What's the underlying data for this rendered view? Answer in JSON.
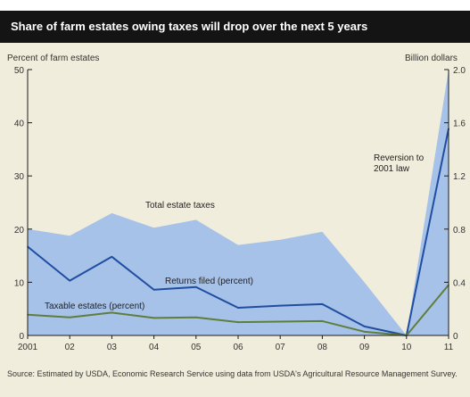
{
  "header": {
    "title": "Share of farm estates owing taxes will drop over the next 5 years"
  },
  "footer": {
    "source": "Source:  Estimated by USDA, Economic Research Service using data from USDA's Agricultural Resource Management Survey."
  },
  "colors": {
    "background": "#f1eddc",
    "area": "#a7c2e8",
    "returns_line": "#1f4ea1",
    "taxable_line": "#5f7d3c",
    "axis": "#1a1a1a"
  },
  "chart_data": {
    "type": "line",
    "title": "",
    "x": [
      "2001",
      "02",
      "03",
      "04",
      "05",
      "06",
      "07",
      "08",
      "09",
      "10",
      "11"
    ],
    "left_axis": {
      "label": "Percent of farm estates",
      "ylim": [
        0,
        50
      ],
      "ticks": [
        0,
        10,
        20,
        30,
        40,
        50
      ]
    },
    "right_axis": {
      "label": "Billion dollars",
      "ylim": [
        0,
        2.0
      ],
      "ticks": [
        "0",
        "0.4",
        "0.8",
        "1.2",
        "1.6",
        "2.0"
      ]
    },
    "series": [
      {
        "name": "Total estate taxes",
        "type": "area",
        "axis": "right",
        "values": [
          0.8,
          0.75,
          0.92,
          0.81,
          0.87,
          0.68,
          0.72,
          0.78,
          0.4,
          0.0,
          2.0
        ]
      },
      {
        "name": "Returns filed (percent)",
        "type": "line",
        "axis": "left",
        "values": [
          16.7,
          10.3,
          14.8,
          8.6,
          9.1,
          5.2,
          5.6,
          5.9,
          1.7,
          0.0,
          38.9
        ]
      },
      {
        "name": "Taxable estates (percent)",
        "type": "line",
        "axis": "left",
        "values": [
          3.9,
          3.4,
          4.3,
          3.3,
          3.4,
          2.5,
          2.6,
          2.7,
          0.7,
          0.0,
          9.5
        ]
      }
    ],
    "annotations": [
      "Reversion to 2001 law"
    ],
    "grid": false,
    "legend": "inline labels"
  }
}
